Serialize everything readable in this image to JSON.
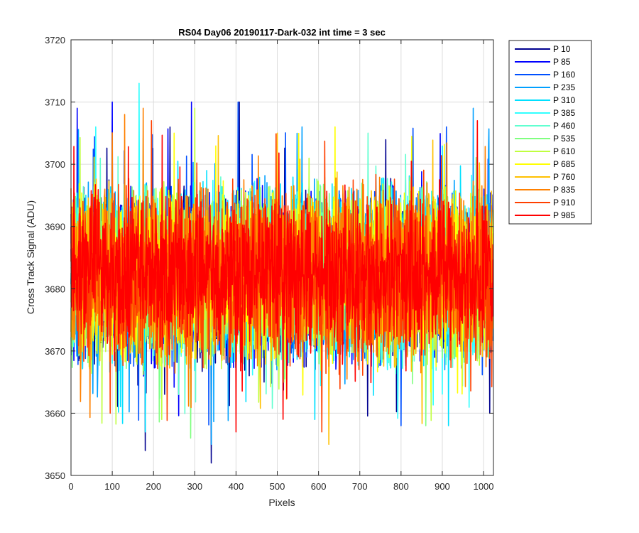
{
  "chart_data": {
    "type": "line",
    "title": "RS04 Day06 20190117-Dark-032 int time = 3 sec",
    "xlabel": "Pixels",
    "ylabel": "Cross Track Signal (ADU)",
    "xlim": [
      0,
      1024
    ],
    "ylim": [
      3650,
      3720
    ],
    "xticks": [
      0,
      100,
      200,
      300,
      400,
      500,
      600,
      700,
      800,
      900,
      1000
    ],
    "yticks": [
      3650,
      3660,
      3670,
      3680,
      3690,
      3700,
      3710,
      3720
    ],
    "grid": true,
    "legend_position": "outside-right",
    "n_points": 1024,
    "series": [
      {
        "name": "P 10",
        "color": "#00008f",
        "mean": 3682,
        "noise_range": [
          3666,
          3698
        ],
        "peaks": [
          [
            180,
            3654
          ],
          [
            340,
            3652
          ],
          [
            408,
            3710
          ],
          [
            1015,
            3660
          ]
        ]
      },
      {
        "name": "P 85",
        "color": "#0000ff",
        "mean": 3682,
        "noise_range": [
          3666,
          3698
        ],
        "peaks": [
          [
            15,
            3709
          ],
          [
            100,
            3710
          ],
          [
            292,
            3710
          ]
        ]
      },
      {
        "name": "P 160",
        "color": "#0050ff",
        "mean": 3682,
        "noise_range": [
          3666,
          3698
        ],
        "peaks": [
          [
            405,
            3710
          ],
          [
            800,
            3658
          ],
          [
            910,
            3706
          ]
        ]
      },
      {
        "name": "P 235",
        "color": "#00a0ff",
        "mean": 3682,
        "noise_range": [
          3666,
          3698
        ],
        "peaks": [
          [
            340,
            3655
          ],
          [
            560,
            3706
          ],
          [
            975,
            3709
          ]
        ]
      },
      {
        "name": "P 310",
        "color": "#00e0ff",
        "mean": 3682,
        "noise_range": [
          3666,
          3698
        ],
        "peaks": [
          [
            180,
            3657
          ],
          [
            915,
            3658
          ]
        ]
      },
      {
        "name": "P 385",
        "color": "#30ffff",
        "mean": 3682,
        "noise_range": [
          3666,
          3698
        ],
        "peaks": [
          [
            165,
            3713
          ],
          [
            60,
            3706
          ]
        ]
      },
      {
        "name": "P 460",
        "color": "#60ffd0",
        "mean": 3682,
        "noise_range": [
          3666,
          3698
        ],
        "peaks": [
          [
            720,
            3705
          ]
        ]
      },
      {
        "name": "P 535",
        "color": "#80ff80",
        "mean": 3682,
        "noise_range": [
          3666,
          3698
        ],
        "peaks": [
          [
            290,
            3656
          ],
          [
            860,
            3658
          ]
        ]
      },
      {
        "name": "P 610",
        "color": "#c0ff40",
        "mean": 3682,
        "noise_range": [
          3666,
          3698
        ],
        "peaks": [
          [
            300,
            3709
          ],
          [
            220,
            3659
          ]
        ]
      },
      {
        "name": "P 685",
        "color": "#ffff00",
        "mean": 3682,
        "noise_range": [
          3666,
          3698
        ],
        "peaks": [
          [
            250,
            3705
          ],
          [
            640,
            3706
          ]
        ]
      },
      {
        "name": "P 760",
        "color": "#ffc000",
        "mean": 3682,
        "noise_range": [
          3666,
          3698
        ],
        "peaks": [
          [
            625,
            3655
          ],
          [
            500,
            3705
          ]
        ]
      },
      {
        "name": "P 835",
        "color": "#ff8000",
        "mean": 3682,
        "noise_range": [
          3666,
          3698
        ],
        "peaks": [
          [
            175,
            3709
          ],
          [
            130,
            3708
          ]
        ]
      },
      {
        "name": "P 910",
        "color": "#ff4000",
        "mean": 3682,
        "noise_range": [
          3666,
          3698
        ],
        "peaks": [
          [
            95,
            3660
          ],
          [
            608,
            3657
          ],
          [
            195,
            3707
          ]
        ]
      },
      {
        "name": "P 985",
        "color": "#ff0000",
        "mean": 3683,
        "noise_range": [
          3669,
          3697
        ],
        "peaks": [
          [
            400,
            3657
          ],
          [
            985,
            3707
          ]
        ]
      }
    ]
  }
}
